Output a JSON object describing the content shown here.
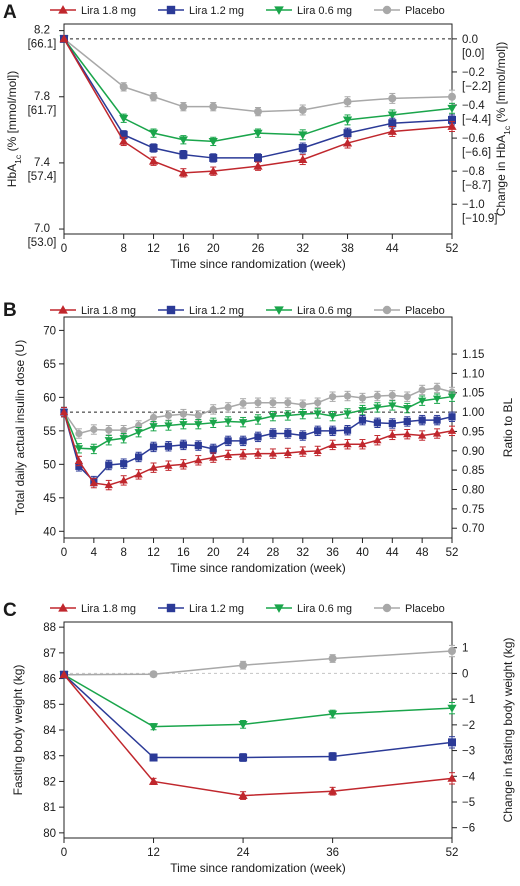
{
  "colors": {
    "lira18": "#c0272d",
    "lira12": "#2b3a97",
    "lira06": "#1aa54b",
    "placebo": "#a8a8a8"
  },
  "chart_data": [
    {
      "type": "line",
      "panel_label": "A",
      "legend": [
        "Lira 1.8 mg",
        "Lira 1.2 mg",
        "Lira 0.6 mg",
        "Placebo"
      ],
      "legend_placement": "top",
      "x": [
        0,
        8,
        12,
        16,
        20,
        26,
        32,
        38,
        44,
        52
      ],
      "x_ticks": [
        "0",
        "8",
        "12",
        "16",
        "20",
        "26",
        "32",
        "38",
        "44",
        "52"
      ],
      "xlabel": "Time since randomization (week)",
      "ylabel_left_html": [
        "HbA",
        "1c",
        " (% [mmol/mol])"
      ],
      "ylabel_right_html": [
        "Change in HbA",
        "1c",
        " (% [mmol/mol])"
      ],
      "ylim": [
        6.97,
        8.24
      ],
      "y_ticks_left": [
        {
          "v": 8.2,
          "l1": "8.2",
          "l2": "[66.1]"
        },
        {
          "v": 7.8,
          "l1": "7.8",
          "l2": "[61.7]"
        },
        {
          "v": 7.4,
          "l1": "7.4",
          "l2": "[57.4]"
        },
        {
          "v": 7.0,
          "l1": "7.0",
          "l2": "[53.0]"
        }
      ],
      "y_ticks_right": [
        {
          "v": 8.15,
          "l1": "0.0",
          "l2": "[0.0]"
        },
        {
          "v": 7.95,
          "l1": "−0.2",
          "l2": "[−2.2]"
        },
        {
          "v": 7.75,
          "l1": "−0.4",
          "l2": "[−4.4]"
        },
        {
          "v": 7.55,
          "l1": "−0.6",
          "l2": "[−6.6]"
        },
        {
          "v": 7.35,
          "l1": "−0.8",
          "l2": "[−8.7]"
        },
        {
          "v": 7.15,
          "l1": "−1.0",
          "l2": "[−10.9]"
        }
      ],
      "reference_line": 8.15,
      "series": [
        {
          "name": "Lira 1.8 mg",
          "marker": "triangle-up",
          "values": [
            8.15,
            7.53,
            7.41,
            7.34,
            7.35,
            7.38,
            7.42,
            7.52,
            7.59,
            7.62
          ],
          "err": [
            0,
            0.025,
            0.025,
            0.025,
            0.025,
            0.025,
            0.03,
            0.03,
            0.03,
            0.03
          ]
        },
        {
          "name": "Lira 1.2 mg",
          "marker": "square",
          "values": [
            8.15,
            7.57,
            7.49,
            7.45,
            7.43,
            7.43,
            7.49,
            7.58,
            7.64,
            7.66
          ],
          "err": [
            0,
            0.025,
            0.025,
            0.025,
            0.025,
            0.025,
            0.03,
            0.03,
            0.03,
            0.03
          ]
        },
        {
          "name": "Lira 0.6 mg",
          "marker": "triangle-down",
          "values": [
            8.15,
            7.67,
            7.58,
            7.54,
            7.53,
            7.58,
            7.57,
            7.66,
            7.69,
            7.73
          ],
          "err": [
            0,
            0.025,
            0.025,
            0.025,
            0.025,
            0.025,
            0.03,
            0.03,
            0.03,
            0.03
          ]
        },
        {
          "name": "Placebo",
          "marker": "circle",
          "values": [
            8.15,
            7.86,
            7.8,
            7.74,
            7.74,
            7.71,
            7.72,
            7.77,
            7.79,
            7.8
          ],
          "err": [
            0,
            0.025,
            0.025,
            0.025,
            0.025,
            0.025,
            0.03,
            0.03,
            0.03,
            0.04
          ]
        }
      ]
    },
    {
      "type": "line",
      "panel_label": "B",
      "legend": [
        "Lira 1.8 mg",
        "Lira 1.2 mg",
        "Lira 0.6 mg",
        "Placebo"
      ],
      "legend_placement": "top",
      "x": [
        0,
        2,
        4,
        6,
        8,
        10,
        12,
        14,
        16,
        18,
        20,
        22,
        24,
        26,
        28,
        30,
        32,
        34,
        36,
        38,
        40,
        42,
        44,
        46,
        48,
        50,
        52
      ],
      "x_ticks": [
        "0",
        "4",
        "8",
        "12",
        "16",
        "20",
        "24",
        "28",
        "32",
        "36",
        "40",
        "44",
        "48",
        "52"
      ],
      "xlabel": "Time since randomization (week)",
      "ylabel_left": "Total daily actual insulin dose (U)",
      "ylabel_right": "Ratio to BL",
      "ylim": [
        39,
        72
      ],
      "y_ticks_left": [
        "70",
        "65",
        "60",
        "55",
        "50",
        "45",
        "40"
      ],
      "y_ticks_right": [
        "1.15",
        "1.10",
        "1.05",
        "1.00",
        "0.95",
        "0.90",
        "0.85",
        "0.80",
        "0.75",
        "0.70"
      ],
      "reference_line": 57.8,
      "series": [
        {
          "name": "Lira 1.8 mg",
          "marker": "triangle-up",
          "values": [
            57.8,
            50.5,
            47.2,
            46.9,
            47.6,
            48.5,
            49.5,
            49.8,
            50.0,
            50.6,
            51.0,
            51.4,
            51.5,
            51.6,
            51.6,
            51.7,
            51.9,
            52.0,
            52.9,
            53.0,
            53.0,
            53.6,
            54.4,
            54.5,
            54.3,
            54.6,
            55.0
          ],
          "err": 0.7
        },
        {
          "name": "Lira 1.2 mg",
          "marker": "square",
          "values": [
            57.8,
            49.7,
            47.5,
            49.9,
            50.1,
            51.1,
            52.6,
            52.7,
            52.9,
            52.8,
            52.3,
            53.5,
            53.5,
            54.1,
            54.6,
            54.6,
            54.3,
            55.0,
            55.0,
            55.1,
            56.6,
            56.2,
            56.1,
            56.4,
            56.6,
            56.6,
            57.1
          ],
          "err": 0.7
        },
        {
          "name": "Lira 0.6 mg",
          "marker": "triangle-down",
          "values": [
            57.8,
            52.4,
            52.3,
            53.6,
            53.9,
            54.8,
            55.7,
            55.8,
            56.0,
            56.0,
            56.2,
            56.4,
            56.3,
            56.7,
            57.2,
            57.3,
            57.5,
            57.6,
            57.2,
            57.6,
            58.1,
            58.5,
            58.8,
            58.4,
            59.5,
            59.8,
            60.1
          ],
          "err": 0.7
        },
        {
          "name": "Placebo",
          "marker": "circle",
          "values": [
            57.8,
            54.6,
            55.2,
            55.1,
            55.1,
            55.8,
            57.0,
            57.3,
            57.5,
            57.3,
            58.2,
            58.5,
            59.1,
            59.2,
            59.2,
            59.2,
            58.9,
            59.2,
            60.1,
            60.2,
            59.9,
            60.2,
            60.3,
            60.1,
            61.1,
            61.4,
            60.8
          ],
          "err": 0.7
        }
      ]
    },
    {
      "type": "line",
      "panel_label": "C",
      "legend": [
        "Lira 1.8 mg",
        "Lira 1.2 mg",
        "Lira 0.6 mg",
        "Placebo"
      ],
      "legend_placement": "top",
      "x": [
        0,
        12,
        24,
        36,
        52
      ],
      "x_ticks": [
        "0",
        "12",
        "24",
        "36",
        "52"
      ],
      "xlabel": "Time since randomization (week)",
      "ylabel_left": "Fasting body weight (kg)",
      "ylabel_right": "Change in fasting body weight (kg)",
      "ylim": [
        79.8,
        88.2
      ],
      "y_ticks_left": [
        "88",
        "87",
        "86",
        "85",
        "84",
        "83",
        "82",
        "81",
        "80"
      ],
      "y_ticks_right": [
        {
          "v": 87.2,
          "l": "1"
        },
        {
          "v": 86.2,
          "l": "0"
        },
        {
          "v": 85.2,
          "l": "−1"
        },
        {
          "v": 84.2,
          "l": "−2"
        },
        {
          "v": 83.2,
          "l": "−3"
        },
        {
          "v": 82.2,
          "l": "−4"
        },
        {
          "v": 81.2,
          "l": "−5"
        },
        {
          "v": 80.2,
          "l": "−6"
        }
      ],
      "reference_line": 86.2,
      "series": [
        {
          "name": "Lira 1.8 mg",
          "marker": "triangle-up",
          "values": [
            86.15,
            82.0,
            81.45,
            81.62,
            82.12
          ],
          "err": [
            0,
            0.12,
            0.15,
            0.15,
            0.22
          ]
        },
        {
          "name": "Lira 1.2 mg",
          "marker": "square",
          "values": [
            86.15,
            82.93,
            82.93,
            82.97,
            83.52
          ],
          "err": [
            0,
            0.12,
            0.15,
            0.15,
            0.22
          ]
        },
        {
          "name": "Lira 0.6 mg",
          "marker": "triangle-down",
          "values": [
            86.15,
            84.13,
            84.22,
            84.62,
            84.85
          ],
          "err": [
            0,
            0.12,
            0.15,
            0.15,
            0.22
          ]
        },
        {
          "name": "Placebo",
          "marker": "circle",
          "values": [
            86.15,
            86.17,
            86.52,
            86.78,
            87.07
          ],
          "err": [
            0,
            0.1,
            0.15,
            0.15,
            0.22
          ]
        }
      ]
    }
  ]
}
